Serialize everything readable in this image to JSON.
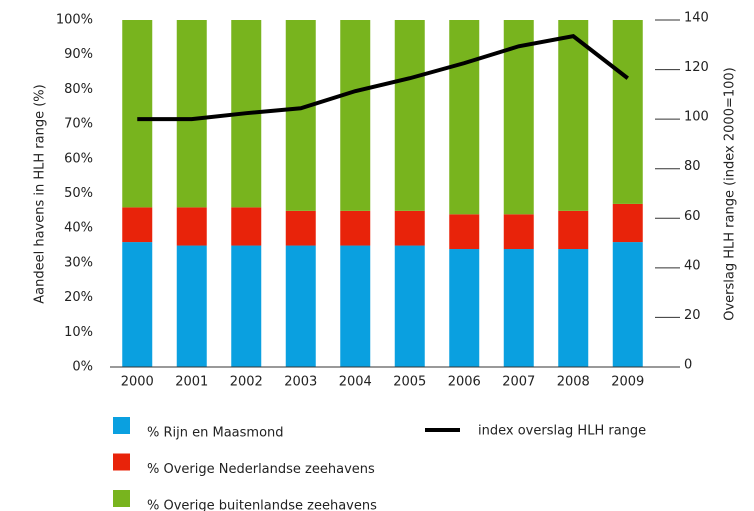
{
  "chart_data": {
    "type": "bar",
    "categories": [
      "2000",
      "2001",
      "2002",
      "2003",
      "2004",
      "2005",
      "2006",
      "2007",
      "2008",
      "2009"
    ],
    "series": [
      {
        "name": "% Rijn en Maasmond",
        "color": "#0aa0e0",
        "values": [
          36,
          35,
          35,
          35,
          35,
          35,
          34,
          34,
          34,
          36
        ]
      },
      {
        "name": "% Overige Nederlandse zeehavens",
        "color": "#e8230a",
        "values": [
          10,
          11,
          11,
          10,
          10,
          10,
          10,
          10,
          11,
          11
        ]
      },
      {
        "name": "% Overige buitenlandse zeehavens",
        "color": "#78b41e",
        "values": [
          54,
          54,
          54,
          55,
          55,
          55,
          56,
          56,
          55,
          53
        ]
      },
      {
        "name": "index overslag HLH range",
        "color": "#000000",
        "type": "line",
        "axis": "y2",
        "values": [
          100,
          100,
          102.4,
          104.4,
          111.3,
          116.5,
          122.6,
          129.4,
          133.5,
          116.5
        ]
      }
    ],
    "ylabel": "Aandeel havens in HLH range (%)",
    "y2label": "Overslag HLH range (index 2000=100)",
    "ylim": [
      0,
      100
    ],
    "yticks": [
      {
        "value": 0,
        "label": "0%"
      },
      {
        "value": 10,
        "label": "10%"
      },
      {
        "value": 20,
        "label": "20%"
      },
      {
        "value": 30,
        "label": "30%"
      },
      {
        "value": 40,
        "label": "40%"
      },
      {
        "value": 50,
        "label": "50%"
      },
      {
        "value": 60,
        "label": "60%"
      },
      {
        "value": 70,
        "label": "70%"
      },
      {
        "value": 80,
        "label": "80%"
      },
      {
        "value": 90,
        "label": "90%"
      },
      {
        "value": 100,
        "label": "100%"
      }
    ],
    "y2lim": [
      0,
      140
    ],
    "y2ticks": [
      0,
      20,
      40,
      60,
      80,
      100,
      120,
      140
    ]
  }
}
